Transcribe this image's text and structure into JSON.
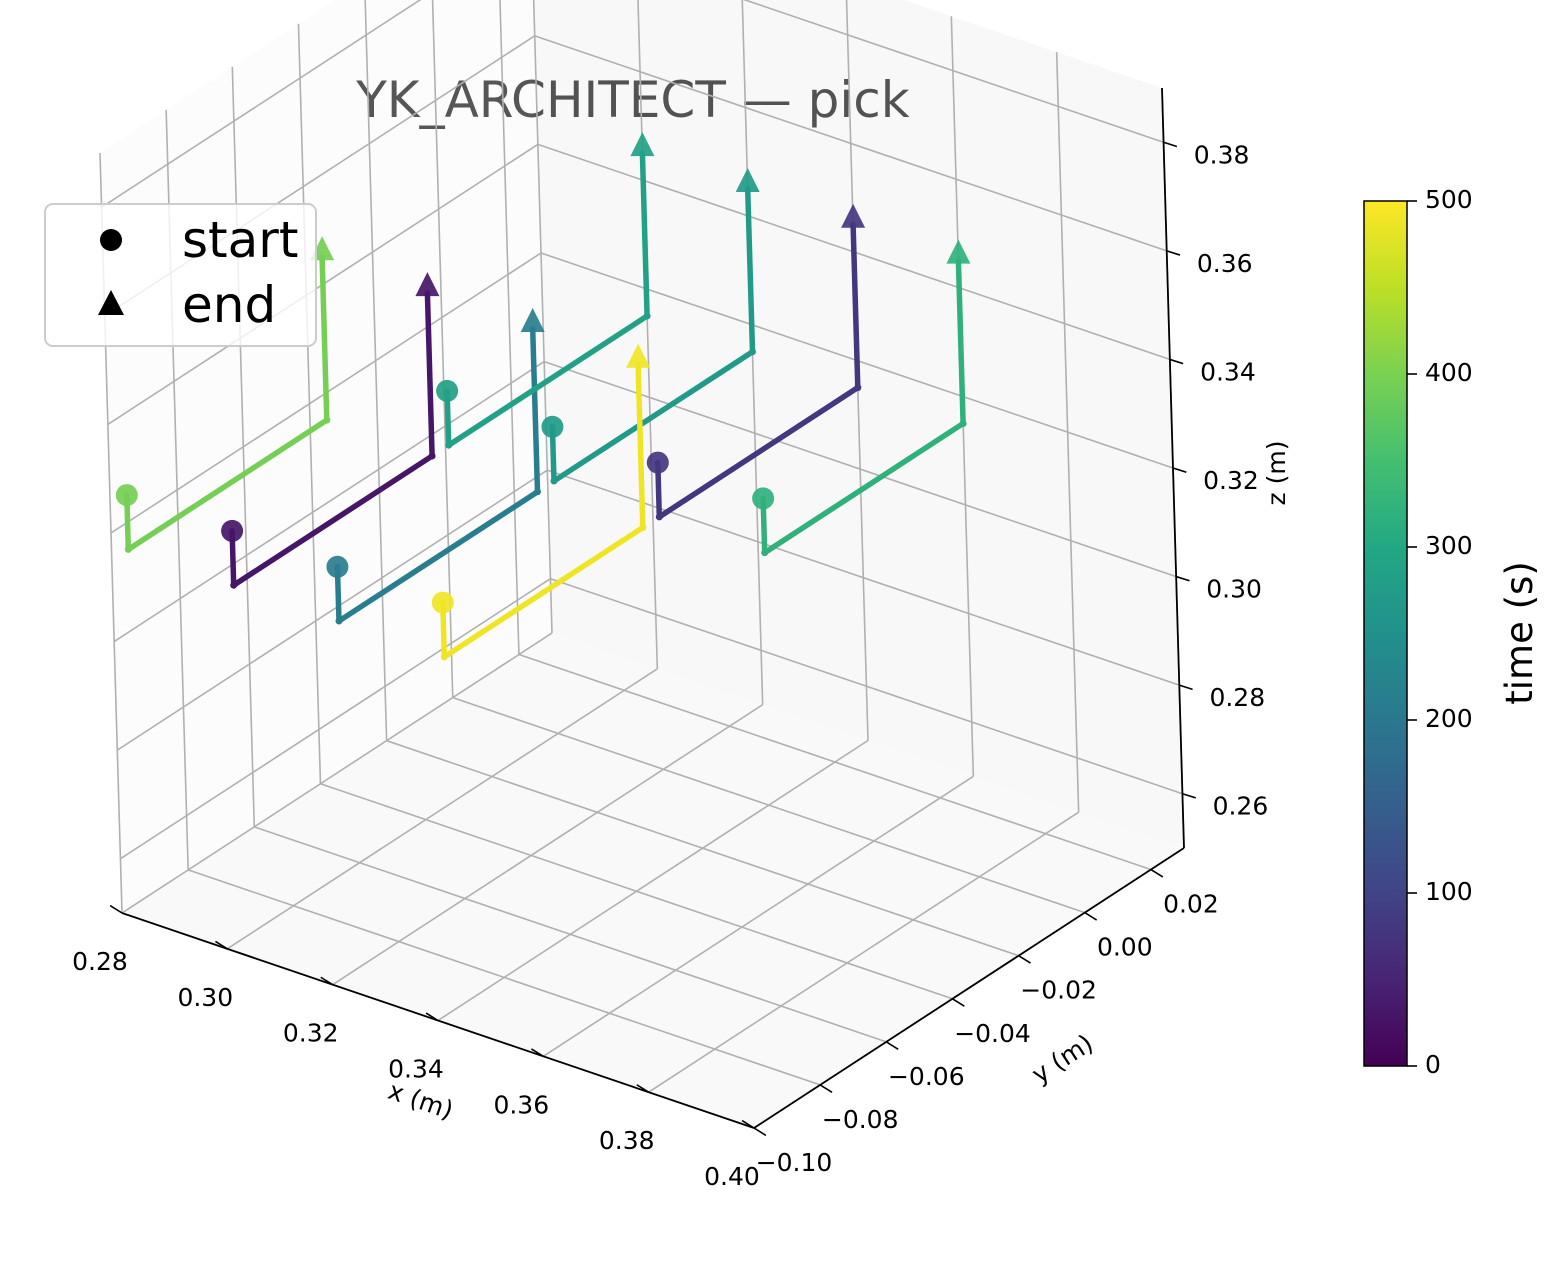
{
  "chart_data": {
    "type": "line",
    "projection": "3d",
    "title": "YK_ARCHITECT — pick",
    "xlabel": "x (m)",
    "ylabel": "y (m)",
    "zlabel": "z (m)",
    "xlim": [
      0.28,
      0.4
    ],
    "ylim": [
      -0.1,
      0.03
    ],
    "zlim": [
      0.25,
      0.39
    ],
    "xticks": [
      "0.28",
      "0.30",
      "0.32",
      "0.34",
      "0.36",
      "0.38",
      "0.40"
    ],
    "yticks": [
      "−0.10",
      "−0.08",
      "−0.06",
      "−0.04",
      "−0.02",
      "0.00",
      "0.02"
    ],
    "zticks": [
      "0.26",
      "0.28",
      "0.30",
      "0.32",
      "0.34",
      "0.36",
      "0.38"
    ],
    "grid": true,
    "legend": {
      "position": "top-left",
      "entries": [
        {
          "label": "start",
          "marker": "circle"
        },
        {
          "label": "end",
          "marker": "triangle"
        }
      ]
    },
    "colorbar": {
      "label": "time (s)",
      "colormap": "viridis",
      "range": [
        0,
        500
      ],
      "ticks": [
        "0",
        "100",
        "200",
        "300",
        "400",
        "500"
      ]
    },
    "trajectories": [
      {
        "time": 30,
        "start": [
          0.3,
          -0.095,
          0.325
        ],
        "corner": [
          0.3,
          -0.095,
          0.315
        ],
        "end": [
          0.3,
          -0.035,
          0.315
        ],
        "tip": [
          0.3,
          -0.035,
          0.345
        ]
      },
      {
        "time": 80,
        "start": [
          0.34,
          -0.03,
          0.325
        ],
        "corner": [
          0.34,
          -0.03,
          0.315
        ],
        "end": [
          0.34,
          0.03,
          0.315
        ],
        "tip": [
          0.34,
          0.03,
          0.345
        ]
      },
      {
        "time": 210,
        "start": [
          0.32,
          -0.095,
          0.325
        ],
        "corner": [
          0.32,
          -0.095,
          0.315
        ],
        "end": [
          0.32,
          -0.035,
          0.315
        ],
        "tip": [
          0.32,
          -0.035,
          0.345
        ]
      },
      {
        "time": 270,
        "start": [
          0.32,
          -0.03,
          0.325
        ],
        "corner": [
          0.32,
          -0.03,
          0.315
        ],
        "end": [
          0.32,
          0.03,
          0.315
        ],
        "tip": [
          0.32,
          0.03,
          0.345
        ]
      },
      {
        "time": 285,
        "start": [
          0.3,
          -0.03,
          0.325
        ],
        "corner": [
          0.3,
          -0.03,
          0.315
        ],
        "end": [
          0.3,
          0.03,
          0.315
        ],
        "tip": [
          0.3,
          0.03,
          0.345
        ]
      },
      {
        "time": 320,
        "start": [
          0.36,
          -0.03,
          0.325
        ],
        "corner": [
          0.36,
          -0.03,
          0.315
        ],
        "end": [
          0.36,
          0.03,
          0.315
        ],
        "tip": [
          0.36,
          0.03,
          0.345
        ]
      },
      {
        "time": 395,
        "start": [
          0.28,
          -0.095,
          0.325
        ],
        "corner": [
          0.28,
          -0.095,
          0.315
        ],
        "end": [
          0.28,
          -0.035,
          0.315
        ],
        "tip": [
          0.28,
          -0.035,
          0.345
        ]
      },
      {
        "time": 490,
        "start": [
          0.34,
          -0.095,
          0.325
        ],
        "corner": [
          0.34,
          -0.095,
          0.315
        ],
        "end": [
          0.34,
          -0.035,
          0.315
        ],
        "tip": [
          0.34,
          -0.035,
          0.345
        ]
      }
    ]
  }
}
